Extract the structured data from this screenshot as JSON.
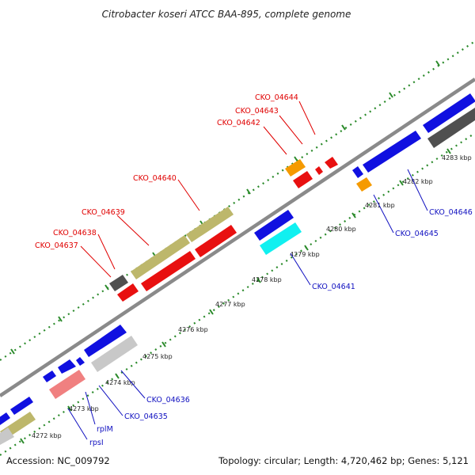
{
  "title": "Citrobacter koseri ATCC BAA-895, complete genome",
  "footer": {
    "accession": "Accession: NC_009792",
    "topology": "Topology: circular; Length: 4,720,462 bp; Genes: 5,121"
  },
  "ticks": [
    "4272 kbp",
    "4273 kbp",
    "4274 kbp",
    "4275 kbp",
    "4276 kbp",
    "4277 kbp",
    "4278 kbp",
    "4279 kbp",
    "4280 kbp",
    "4281 kbp",
    "4282 kbp",
    "4283 kbp"
  ],
  "genes_top": [
    "CKO_04644",
    "CKO_04643",
    "CKO_04642",
    "CKO_04640",
    "CKO_04639",
    "CKO_04638",
    "CKO_04637"
  ],
  "genes_bottom": [
    "CKO_04646",
    "CKO_04645",
    "CKO_04641",
    "CKO_04636",
    "CKO_04635",
    "rplM",
    "rpsI"
  ],
  "colors": {
    "top_label": "#e00000",
    "bottom_label": "#1010c0",
    "backbone": "#8a8a8a",
    "dots": "#2a8a2a",
    "blue": "#1010e0",
    "red": "#e81010",
    "olive": "#bdb76b",
    "gray": "#a0a0a0",
    "darkgray": "#505050",
    "orange": "#f59a00",
    "cyan": "#10f0f0",
    "pink": "#f08080"
  }
}
